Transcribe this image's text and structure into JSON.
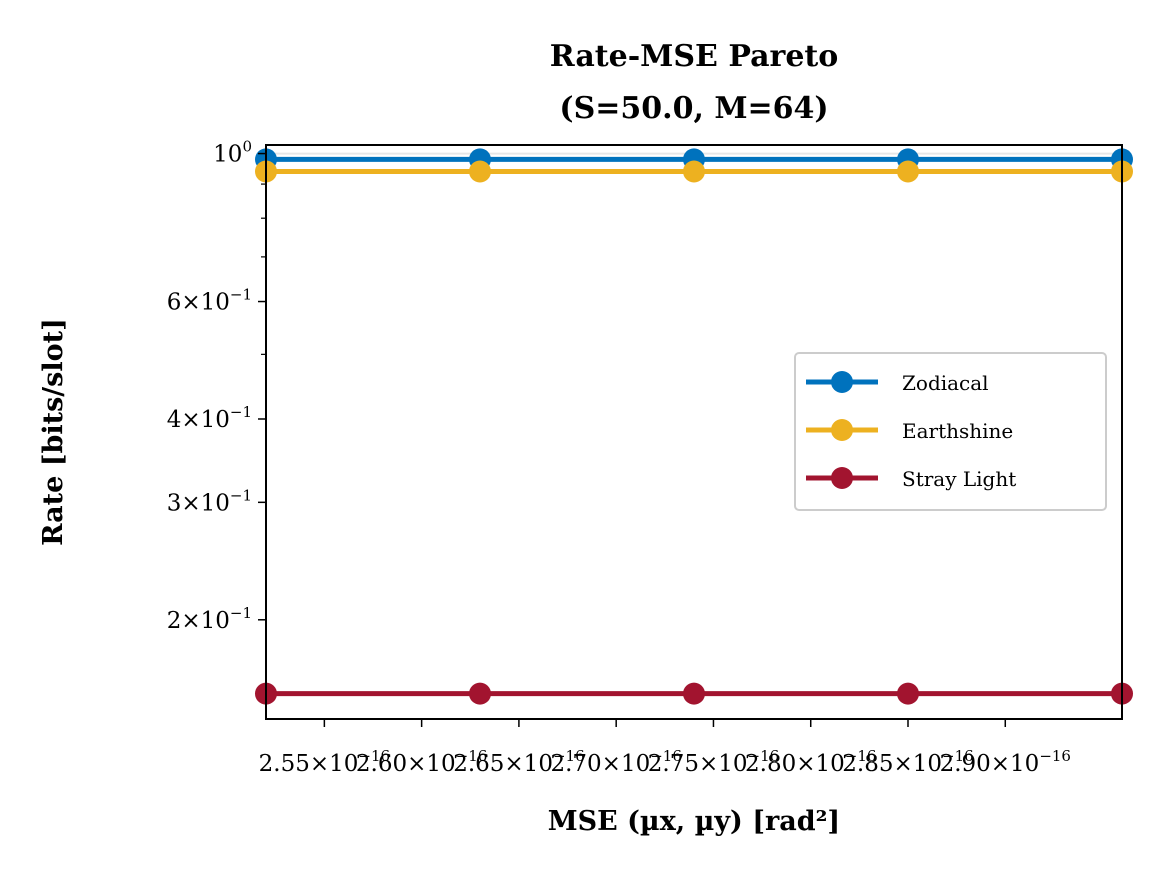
{
  "chart_data": {
    "type": "line",
    "title_lines": [
      "Rate-MSE Pareto",
      "(S=50.0, M=64)"
    ],
    "xlabel": "MSE (µx, µy) [rad²]",
    "ylabel": "Rate [bits/slot]",
    "x": [
      2.52e-16,
      2.63e-16,
      2.74e-16,
      2.85e-16,
      2.96e-16
    ],
    "xlim": [
      2.52e-16,
      2.96e-16
    ],
    "yscale": "log",
    "ylim": [
      0.142,
      1.03
    ],
    "x_ticks": [
      {
        "value": 2.55e-16,
        "mant": "2.55",
        "exp": "−16"
      },
      {
        "value": 2.6e-16,
        "mant": "2.60",
        "exp": "−16"
      },
      {
        "value": 2.65e-16,
        "mant": "2.65",
        "exp": "−16"
      },
      {
        "value": 2.7e-16,
        "mant": "2.70",
        "exp": "−16"
      },
      {
        "value": 2.75e-16,
        "mant": "2.75",
        "exp": "−16"
      },
      {
        "value": 2.8e-16,
        "mant": "2.80",
        "exp": "−16"
      },
      {
        "value": 2.85e-16,
        "mant": "2.85",
        "exp": "−16"
      },
      {
        "value": 2.9e-16,
        "mant": "2.90",
        "exp": "−16"
      }
    ],
    "y_major_ticks": [
      {
        "value": 1.0,
        "mant": "",
        "exp": "0"
      },
      {
        "value": 0.6,
        "mant": "6",
        "exp": "−1"
      },
      {
        "value": 0.4,
        "mant": "4",
        "exp": "−1"
      },
      {
        "value": 0.3,
        "mant": "3",
        "exp": "−1"
      },
      {
        "value": 0.2,
        "mant": "2",
        "exp": "−1"
      }
    ],
    "y_minor_ticks": [
      0.5,
      0.7,
      0.8,
      0.9
    ],
    "series": [
      {
        "name": "Zodiacal",
        "color": "#0072bd",
        "values": [
          0.98,
          0.98,
          0.98,
          0.98,
          0.98
        ]
      },
      {
        "name": "Earthshine",
        "color": "#edb120",
        "values": [
          0.94,
          0.94,
          0.94,
          0.94,
          0.94
        ]
      },
      {
        "name": "Stray Light",
        "color": "#a2142f",
        "values": [
          0.155,
          0.155,
          0.155,
          0.155,
          0.155
        ]
      }
    ],
    "legend_position": "center-right",
    "grid": false
  }
}
